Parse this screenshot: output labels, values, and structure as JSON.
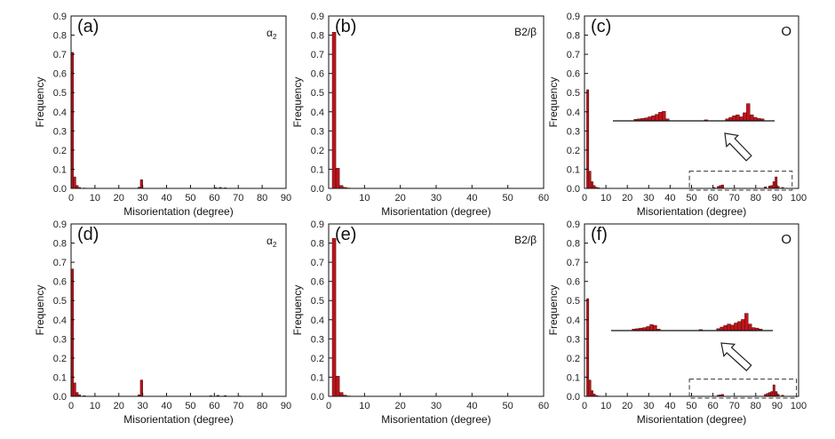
{
  "figure": {
    "panels": [
      {
        "id": "a",
        "letter": "(a)",
        "phase": "α2",
        "phase_main": "α",
        "phase_sub": "2",
        "type": "bar",
        "xlabel": "Misorientation (degree)",
        "ylabel": "Frequency",
        "xlim": [
          0,
          90
        ],
        "ylim": [
          0,
          0.9
        ],
        "xticks": [
          "0",
          "10",
          "20",
          "30",
          "40",
          "50",
          "60",
          "70",
          "80",
          "90"
        ],
        "yticks": [
          "0.0",
          "0.1",
          "0.2",
          "0.3",
          "0.4",
          "0.5",
          "0.6",
          "0.7",
          "0.8",
          "0.9"
        ],
        "bin_width": 1,
        "bars": [
          {
            "x": 0.5,
            "y": 0.71
          },
          {
            "x": 1.5,
            "y": 0.06
          },
          {
            "x": 2.5,
            "y": 0.015
          },
          {
            "x": 3.5,
            "y": 0.005
          },
          {
            "x": 5.5,
            "y": 0.002
          },
          {
            "x": 28.5,
            "y": 0.006
          },
          {
            "x": 29.5,
            "y": 0.045
          },
          {
            "x": 60.5,
            "y": 0.004
          },
          {
            "x": 62.5,
            "y": 0.005
          },
          {
            "x": 64.5,
            "y": 0.003
          }
        ]
      },
      {
        "id": "b",
        "letter": "(b)",
        "phase": "B2/β",
        "type": "bar",
        "xlabel": "Misorientation (degree)",
        "ylabel": "Frequency",
        "xlim": [
          0,
          60
        ],
        "ylim": [
          0,
          0.9
        ],
        "xticks": [
          "0",
          "10",
          "20",
          "30",
          "40",
          "50",
          "60"
        ],
        "yticks": [
          "0.0",
          "0.1",
          "0.2",
          "0.3",
          "0.4",
          "0.5",
          "0.6",
          "0.7",
          "0.8",
          "0.9"
        ],
        "bin_width": 1,
        "bars": [
          {
            "x": 1.5,
            "y": 0.815
          },
          {
            "x": 2.5,
            "y": 0.105
          },
          {
            "x": 3.5,
            "y": 0.015
          },
          {
            "x": 4.5,
            "y": 0.005
          },
          {
            "x": 5.5,
            "y": 0.002
          }
        ]
      },
      {
        "id": "c",
        "letter": "(c)",
        "phase": "O",
        "type": "bar",
        "xlabel": "Misorientation (degree)",
        "ylabel": "Frequency",
        "xlim": [
          0,
          100
        ],
        "ylim": [
          0,
          0.9
        ],
        "xticks": [
          "0",
          "10",
          "20",
          "30",
          "40",
          "50",
          "60",
          "70",
          "80",
          "90",
          "100"
        ],
        "yticks": [
          "0.0",
          "0.1",
          "0.2",
          "0.3",
          "0.4",
          "0.5",
          "0.6",
          "0.7",
          "0.8",
          "0.9"
        ],
        "bin_width": 1,
        "bars": [
          {
            "x": 1.5,
            "y": 0.515
          },
          {
            "x": 2.5,
            "y": 0.09
          },
          {
            "x": 3.5,
            "y": 0.035
          },
          {
            "x": 4.5,
            "y": 0.015
          },
          {
            "x": 5.5,
            "y": 0.006
          },
          {
            "x": 6.5,
            "y": 0.003
          },
          {
            "x": 60.5,
            "y": 0.005
          },
          {
            "x": 62.5,
            "y": 0.01
          },
          {
            "x": 63.5,
            "y": 0.015
          },
          {
            "x": 64.5,
            "y": 0.018
          },
          {
            "x": 84.5,
            "y": 0.008
          },
          {
            "x": 86.5,
            "y": 0.012
          },
          {
            "x": 87.5,
            "y": 0.015
          },
          {
            "x": 88.5,
            "y": 0.035
          },
          {
            "x": 89.5,
            "y": 0.06
          },
          {
            "x": 90.5,
            "y": 0.01
          },
          {
            "x": 92.5,
            "y": 0.005
          }
        ],
        "zoom_box": {
          "x": [
            49,
            97
          ],
          "y": [
            0,
            0.09
          ]
        },
        "inset": {
          "x_range": [
            50,
            96
          ],
          "y_max": 0.07,
          "bars": [
            {
              "x": 56.5,
              "y": 0.003
            },
            {
              "x": 57.5,
              "y": 0.004
            },
            {
              "x": 58.5,
              "y": 0.005
            },
            {
              "x": 59.5,
              "y": 0.006
            },
            {
              "x": 60.5,
              "y": 0.008
            },
            {
              "x": 61.5,
              "y": 0.01
            },
            {
              "x": 62.5,
              "y": 0.013
            },
            {
              "x": 63.5,
              "y": 0.017
            },
            {
              "x": 64.5,
              "y": 0.019
            },
            {
              "x": 65.5,
              "y": 0.004
            },
            {
              "x": 76.5,
              "y": 0.002
            },
            {
              "x": 82.5,
              "y": 0.004
            },
            {
              "x": 83.5,
              "y": 0.007
            },
            {
              "x": 84.5,
              "y": 0.01
            },
            {
              "x": 85.5,
              "y": 0.012
            },
            {
              "x": 86.5,
              "y": 0.008
            },
            {
              "x": 87.5,
              "y": 0.016
            },
            {
              "x": 88.5,
              "y": 0.034
            },
            {
              "x": 89.5,
              "y": 0.012
            },
            {
              "x": 90.5,
              "y": 0.007
            },
            {
              "x": 91.5,
              "y": 0.005
            },
            {
              "x": 92.5,
              "y": 0.004
            }
          ]
        }
      },
      {
        "id": "d",
        "letter": "(d)",
        "phase": "α2",
        "phase_main": "α",
        "phase_sub": "2",
        "type": "bar",
        "xlabel": "Misorientation (degree)",
        "ylabel": "Frequency",
        "xlim": [
          0,
          90
        ],
        "ylim": [
          0,
          0.9
        ],
        "xticks": [
          "0",
          "10",
          "20",
          "30",
          "40",
          "50",
          "60",
          "70",
          "80",
          "90"
        ],
        "yticks": [
          "0.0",
          "0.1",
          "0.2",
          "0.3",
          "0.4",
          "0.5",
          "0.6",
          "0.7",
          "0.8",
          "0.9"
        ],
        "bin_width": 1,
        "bars": [
          {
            "x": 0.5,
            "y": 0.665
          },
          {
            "x": 1.5,
            "y": 0.07
          },
          {
            "x": 2.5,
            "y": 0.02
          },
          {
            "x": 3.5,
            "y": 0.008
          },
          {
            "x": 5.5,
            "y": 0.003
          },
          {
            "x": 28.5,
            "y": 0.008
          },
          {
            "x": 29.5,
            "y": 0.085
          },
          {
            "x": 58.5,
            "y": 0.003
          },
          {
            "x": 61.5,
            "y": 0.005
          },
          {
            "x": 64.5,
            "y": 0.004
          },
          {
            "x": 70.5,
            "y": 0.002
          }
        ]
      },
      {
        "id": "e",
        "letter": "(e)",
        "phase": "B2/β",
        "type": "bar",
        "xlabel": "Misorientation (degree)",
        "ylabel": "Frequency",
        "xlim": [
          0,
          60
        ],
        "ylim": [
          0,
          0.9
        ],
        "xticks": [
          "0",
          "10",
          "20",
          "30",
          "40",
          "50",
          "60"
        ],
        "yticks": [
          "0.0",
          "0.1",
          "0.2",
          "0.3",
          "0.4",
          "0.5",
          "0.6",
          "0.7",
          "0.8",
          "0.9"
        ],
        "bin_width": 1,
        "bars": [
          {
            "x": 1.5,
            "y": 0.825
          },
          {
            "x": 2.5,
            "y": 0.105
          },
          {
            "x": 3.5,
            "y": 0.02
          },
          {
            "x": 4.5,
            "y": 0.006
          },
          {
            "x": 5.5,
            "y": 0.002
          }
        ]
      },
      {
        "id": "f",
        "letter": "(f)",
        "phase": "O",
        "type": "bar",
        "xlabel": "Misorientation (degree)",
        "ylabel": "Frequency",
        "xlim": [
          0,
          100
        ],
        "ylim": [
          0,
          0.9
        ],
        "xticks": [
          "0",
          "10",
          "20",
          "30",
          "40",
          "50",
          "60",
          "70",
          "80",
          "90",
          "100"
        ],
        "yticks": [
          "0.0",
          "0.1",
          "0.2",
          "0.3",
          "0.4",
          "0.5",
          "0.6",
          "0.7",
          "0.8",
          "0.9"
        ],
        "bin_width": 1,
        "bars": [
          {
            "x": 1.5,
            "y": 0.51
          },
          {
            "x": 2.5,
            "y": 0.085
          },
          {
            "x": 3.5,
            "y": 0.03
          },
          {
            "x": 4.5,
            "y": 0.012
          },
          {
            "x": 5.5,
            "y": 0.005
          },
          {
            "x": 6.5,
            "y": 0.002
          },
          {
            "x": 62.5,
            "y": 0.006
          },
          {
            "x": 63.5,
            "y": 0.008
          },
          {
            "x": 64.5,
            "y": 0.01
          },
          {
            "x": 84.5,
            "y": 0.01
          },
          {
            "x": 85.5,
            "y": 0.015
          },
          {
            "x": 86.5,
            "y": 0.02
          },
          {
            "x": 87.5,
            "y": 0.025
          },
          {
            "x": 88.5,
            "y": 0.06
          },
          {
            "x": 89.5,
            "y": 0.025
          },
          {
            "x": 90.5,
            "y": 0.01
          },
          {
            "x": 92.5,
            "y": 0.006
          }
        ],
        "zoom_box": {
          "x": [
            49,
            99
          ],
          "y": [
            0,
            0.09
          ]
        },
        "inset": {
          "x_range": [
            50,
            96
          ],
          "y_max": 0.07,
          "bars": [
            {
              "x": 56.5,
              "y": 0.003
            },
            {
              "x": 57.5,
              "y": 0.004
            },
            {
              "x": 58.5,
              "y": 0.005
            },
            {
              "x": 59.5,
              "y": 0.006
            },
            {
              "x": 60.5,
              "y": 0.008
            },
            {
              "x": 61.5,
              "y": 0.012
            },
            {
              "x": 62.5,
              "y": 0.01
            },
            {
              "x": 63.5,
              "y": 0.003
            },
            {
              "x": 75.5,
              "y": 0.002
            },
            {
              "x": 80.5,
              "y": 0.004
            },
            {
              "x": 81.5,
              "y": 0.007
            },
            {
              "x": 82.5,
              "y": 0.01
            },
            {
              "x": 83.5,
              "y": 0.013
            },
            {
              "x": 84.5,
              "y": 0.011
            },
            {
              "x": 85.5,
              "y": 0.015
            },
            {
              "x": 86.5,
              "y": 0.018
            },
            {
              "x": 87.5,
              "y": 0.022
            },
            {
              "x": 88.5,
              "y": 0.034
            },
            {
              "x": 89.5,
              "y": 0.013
            },
            {
              "x": 90.5,
              "y": 0.006
            },
            {
              "x": 91.5,
              "y": 0.005
            },
            {
              "x": 92.5,
              "y": 0.003
            }
          ]
        }
      }
    ]
  },
  "chart_data": [
    {
      "type": "bar",
      "panel": "(a)",
      "label": "α2",
      "xlabel": "Misorientation (degree)",
      "ylabel": "Frequency",
      "xlim": [
        0,
        90
      ],
      "ylim": [
        0,
        0.9
      ],
      "x": [
        0.5,
        1.5,
        2.5,
        3.5,
        5.5,
        28.5,
        29.5,
        60.5,
        62.5,
        64.5
      ],
      "values": [
        0.71,
        0.06,
        0.015,
        0.005,
        0.002,
        0.006,
        0.045,
        0.004,
        0.005,
        0.003
      ]
    },
    {
      "type": "bar",
      "panel": "(b)",
      "label": "B2/β",
      "xlabel": "Misorientation (degree)",
      "ylabel": "Frequency",
      "xlim": [
        0,
        60
      ],
      "ylim": [
        0,
        0.9
      ],
      "x": [
        1.5,
        2.5,
        3.5,
        4.5,
        5.5
      ],
      "values": [
        0.815,
        0.105,
        0.015,
        0.005,
        0.002
      ]
    },
    {
      "type": "bar",
      "panel": "(c)",
      "label": "O",
      "xlabel": "Misorientation (degree)",
      "ylabel": "Frequency",
      "xlim": [
        0,
        100
      ],
      "ylim": [
        0,
        0.9
      ],
      "x": [
        1.5,
        2.5,
        3.5,
        4.5,
        5.5,
        6.5,
        60.5,
        62.5,
        63.5,
        64.5,
        84.5,
        86.5,
        87.5,
        88.5,
        89.5,
        90.5,
        92.5
      ],
      "values": [
        0.515,
        0.09,
        0.035,
        0.015,
        0.006,
        0.003,
        0.005,
        0.01,
        0.015,
        0.018,
        0.008,
        0.012,
        0.015,
        0.035,
        0.06,
        0.01,
        0.005
      ]
    },
    {
      "type": "bar",
      "panel": "(d)",
      "label": "α2",
      "xlabel": "Misorientation (degree)",
      "ylabel": "Frequency",
      "xlim": [
        0,
        90
      ],
      "ylim": [
        0,
        0.9
      ],
      "x": [
        0.5,
        1.5,
        2.5,
        3.5,
        5.5,
        28.5,
        29.5,
        58.5,
        61.5,
        64.5,
        70.5
      ],
      "values": [
        0.665,
        0.07,
        0.02,
        0.008,
        0.003,
        0.008,
        0.085,
        0.003,
        0.005,
        0.004,
        0.002
      ]
    },
    {
      "type": "bar",
      "panel": "(e)",
      "label": "B2/β",
      "xlabel": "Misorientation (degree)",
      "ylabel": "Frequency",
      "xlim": [
        0,
        60
      ],
      "ylim": [
        0,
        0.9
      ],
      "x": [
        1.5,
        2.5,
        3.5,
        4.5,
        5.5
      ],
      "values": [
        0.825,
        0.105,
        0.02,
        0.006,
        0.002
      ]
    },
    {
      "type": "bar",
      "panel": "(f)",
      "label": "O",
      "xlabel": "Misorientation (degree)",
      "ylabel": "Frequency",
      "xlim": [
        0,
        100
      ],
      "ylim": [
        0,
        0.9
      ],
      "x": [
        1.5,
        2.5,
        3.5,
        4.5,
        5.5,
        6.5,
        62.5,
        63.5,
        64.5,
        84.5,
        85.5,
        86.5,
        87.5,
        88.5,
        89.5,
        90.5,
        92.5
      ],
      "values": [
        0.51,
        0.085,
        0.03,
        0.012,
        0.005,
        0.002,
        0.006,
        0.008,
        0.01,
        0.01,
        0.015,
        0.02,
        0.025,
        0.06,
        0.025,
        0.01,
        0.006
      ]
    }
  ]
}
